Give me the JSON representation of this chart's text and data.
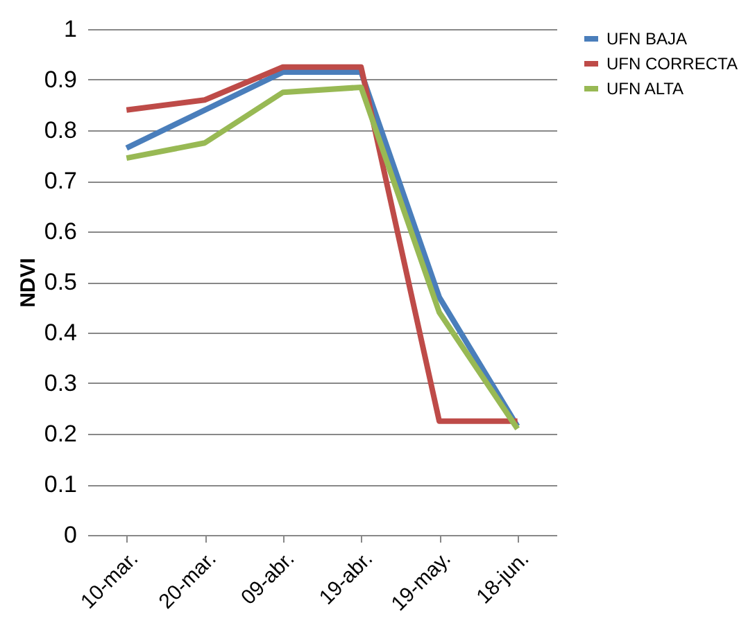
{
  "chart_data": {
    "type": "line",
    "ylabel": "NDVI",
    "categories": [
      "10-mar.",
      "20-mar.",
      "09-abr.",
      "19-abr.",
      "19-may.",
      "18-jun."
    ],
    "series": [
      {
        "name": "UFN BAJA",
        "color": "#4a7ebb",
        "values": [
          0.765,
          0.84,
          0.915,
          0.915,
          0.47,
          0.215
        ]
      },
      {
        "name": "UFN CORRECTA",
        "color": "#be4b48",
        "values": [
          0.84,
          0.86,
          0.925,
          0.925,
          0.225,
          0.225
        ]
      },
      {
        "name": "UFN ALTA",
        "color": "#98b954",
        "values": [
          0.745,
          0.775,
          0.875,
          0.885,
          0.44,
          0.21
        ]
      }
    ],
    "ylim": [
      0,
      1
    ],
    "yticks": [
      0,
      0.1,
      0.2,
      0.3,
      0.4,
      0.5,
      0.6,
      0.7,
      0.8,
      0.9,
      1
    ],
    "grid": "y",
    "legend": "right",
    "marker": "none",
    "line_style": "solid"
  }
}
